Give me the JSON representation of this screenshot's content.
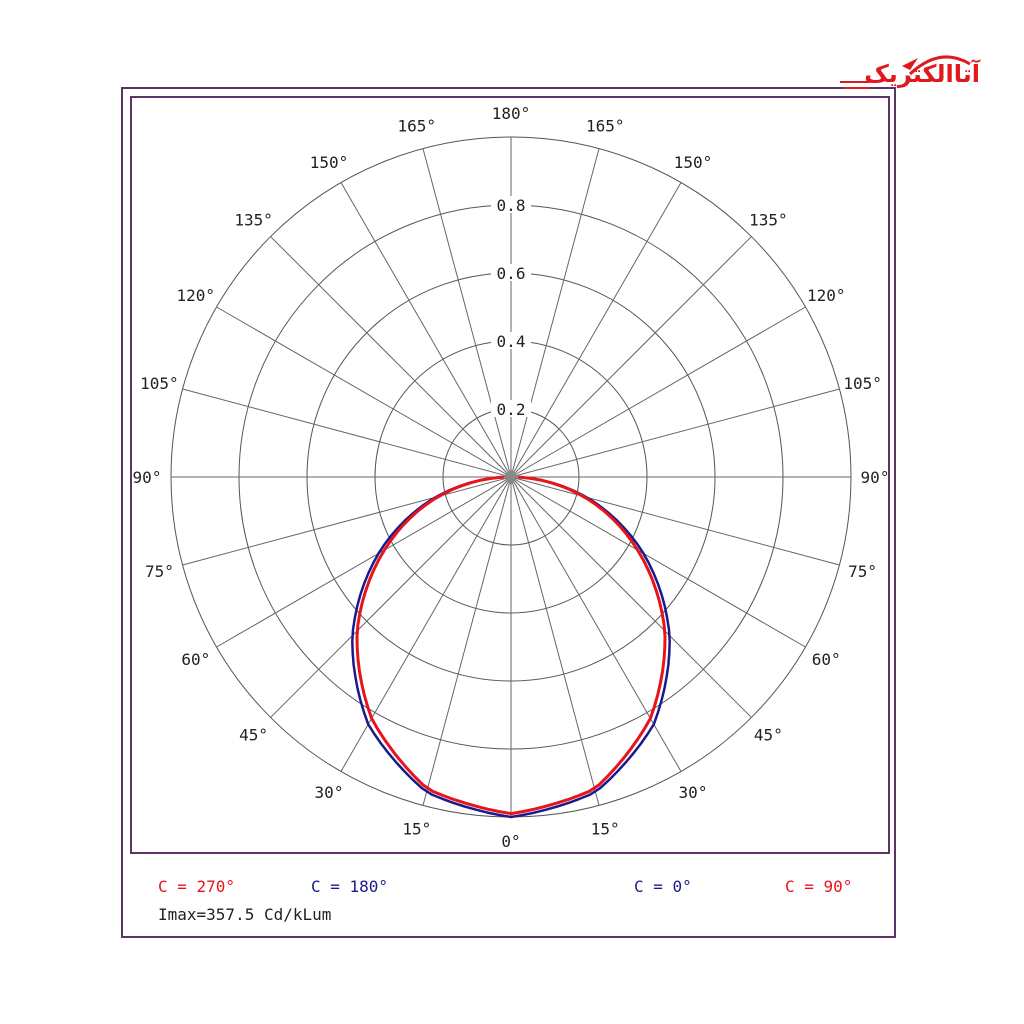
{
  "logo": {
    "text": "آتاالکتریک",
    "color": "#e0191f"
  },
  "chart_data": {
    "type": "polar",
    "title": "",
    "radial_ticks": [
      "0.2",
      "0.4",
      "0.6",
      "0.8"
    ],
    "radial_range": [
      0,
      1.0
    ],
    "angle_ticks_left": [
      "0°",
      "15°",
      "30°",
      "45°",
      "60°",
      "75°",
      "90°",
      "105°",
      "120°",
      "135°",
      "150°",
      "165°",
      "180°"
    ],
    "angle_ticks_right": [
      "15°",
      "30°",
      "45°",
      "60°",
      "75°",
      "90°",
      "105°",
      "120°",
      "135°",
      "150°",
      "165°"
    ],
    "angles_deg": [
      0,
      15,
      30,
      45,
      60,
      75,
      90
    ],
    "series": [
      {
        "name": "C = 0° / C = 180°",
        "color": "#1a1a8c",
        "values": [
          1.0,
          0.96,
          0.84,
          0.66,
          0.45,
          0.23,
          0
        ]
      },
      {
        "name": "C = 90° / C = 270°",
        "color": "#e8141c",
        "values": [
          0.99,
          0.95,
          0.82,
          0.64,
          0.43,
          0.22,
          0
        ]
      }
    ],
    "grid": true
  },
  "legend": {
    "c270": {
      "text": "C = 270°",
      "color": "#e8141c"
    },
    "c180": {
      "text": "C = 180°",
      "color": "#1a1a8c"
    },
    "c0": {
      "text": "C = 0°",
      "color": "#1a1a8c"
    },
    "c90": {
      "text": "C = 90°",
      "color": "#e8141c"
    },
    "imax": "Imax=357.5 Cd/kLum"
  }
}
